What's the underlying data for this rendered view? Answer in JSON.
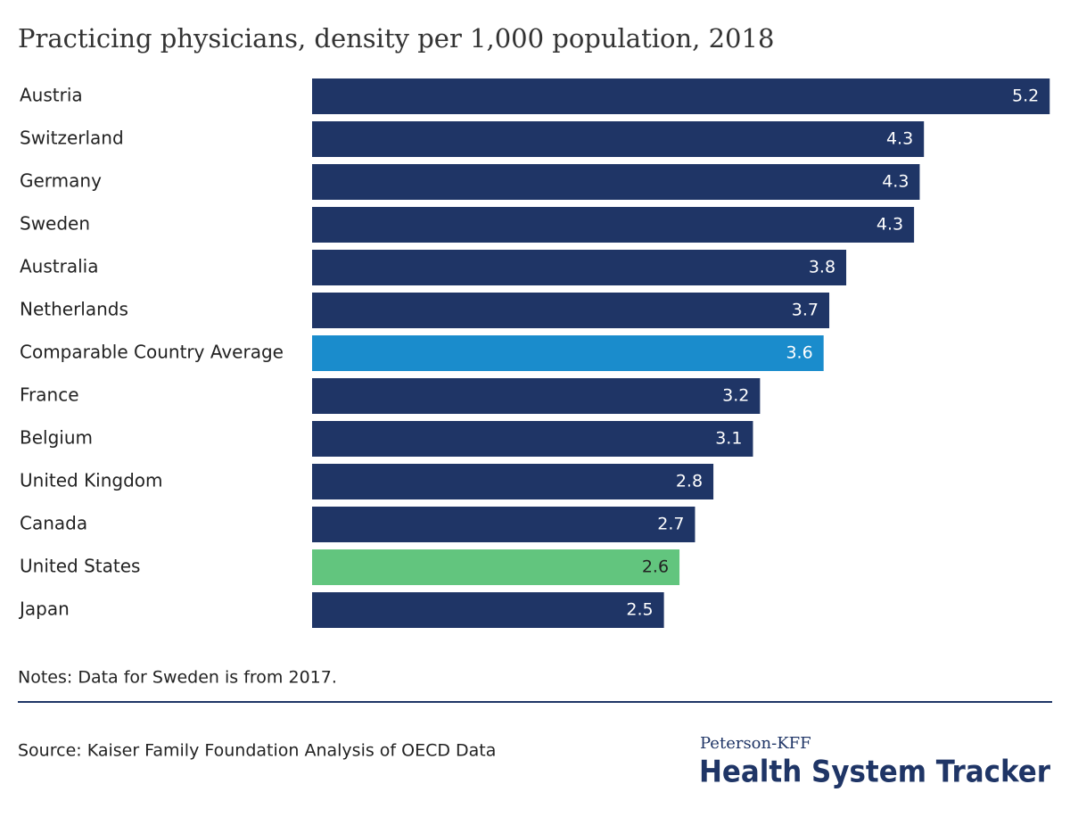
{
  "chart_data": {
    "type": "hbar",
    "title": "Practicing physicians, density per 1,000 population, 2018",
    "categories": [
      "Austria",
      "Switzerland",
      "Germany",
      "Sweden",
      "Australia",
      "Netherlands",
      "Comparable Country Average",
      "France",
      "Belgium",
      "United Kingdom",
      "Canada",
      "United States",
      "Japan"
    ],
    "values": [
      5.22,
      4.33,
      4.3,
      4.26,
      3.78,
      3.66,
      3.62,
      3.17,
      3.12,
      2.84,
      2.71,
      2.6,
      2.49
    ],
    "value_labels": [
      "5.2",
      "4.3",
      "4.3",
      "4.3",
      "3.8",
      "3.7",
      "3.6",
      "3.2",
      "3.1",
      "2.8",
      "2.7",
      "2.6",
      "2.5"
    ],
    "colors": [
      "#1f3566",
      "#1f3566",
      "#1f3566",
      "#1f3566",
      "#1f3566",
      "#1f3566",
      "#1a8ccc",
      "#1f3566",
      "#1f3566",
      "#1f3566",
      "#1f3566",
      "#62c57e",
      "#1f3566"
    ],
    "xlim": [
      0,
      5.25
    ],
    "notes": "Notes: Data for Sweden is from 2017.",
    "source": "Source: Kaiser Family Foundation Analysis of OECD Data",
    "logo_top": "Peterson-KFF",
    "logo_main": "Health System Tracker"
  }
}
